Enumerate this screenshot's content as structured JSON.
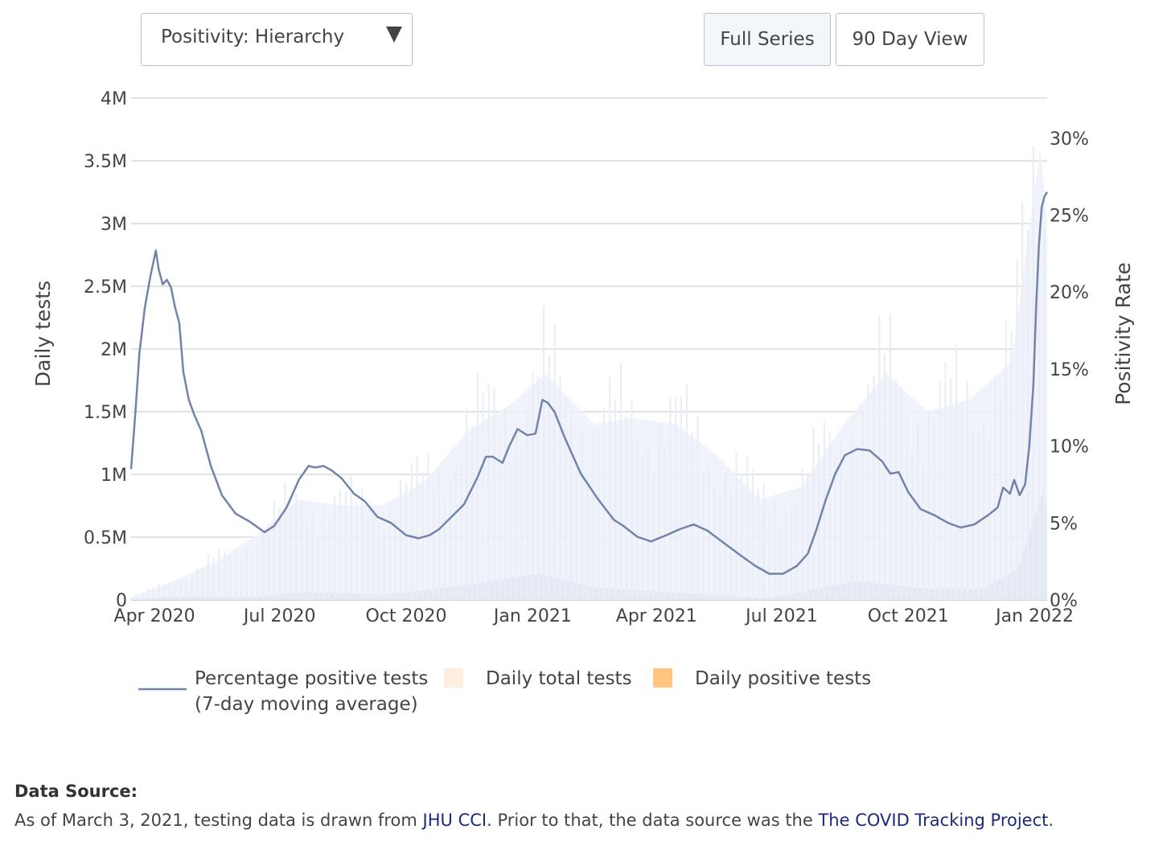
{
  "controls": {
    "dropdown_value": "Positivity: Hierarchy",
    "buttons": [
      {
        "label": "Full Series",
        "active": true
      },
      {
        "label": "90 Day View",
        "active": false
      }
    ]
  },
  "chart_data": {
    "type": "line",
    "ylabel": "Daily tests",
    "y2label": "Positivity Rate",
    "x_tick_labels": [
      "Apr 2020",
      "Jul 2020",
      "Oct 2020",
      "Jan 2021",
      "Apr 2021",
      "Jul 2021",
      "Oct 2021",
      "Jan 2022"
    ],
    "x_range": [
      "2020-03-15",
      "2022-01-10"
    ],
    "y_ticks": [
      {
        "value": 0,
        "label": "0"
      },
      {
        "value": 500000,
        "label": "0.5M"
      },
      {
        "value": 1000000,
        "label": "1M"
      },
      {
        "value": 1500000,
        "label": "1.5M"
      },
      {
        "value": 2000000,
        "label": "2M"
      },
      {
        "value": 2500000,
        "label": "2.5M"
      },
      {
        "value": 3000000,
        "label": "3M"
      },
      {
        "value": 3500000,
        "label": "3.5M"
      },
      {
        "value": 4000000,
        "label": "4M"
      }
    ],
    "y_range": [
      0,
      4000000
    ],
    "y2_ticks": [
      {
        "value": 0,
        "label": "0%"
      },
      {
        "value": 5,
        "label": "5%"
      },
      {
        "value": 10,
        "label": "10%"
      },
      {
        "value": 15,
        "label": "15%"
      },
      {
        "value": 20,
        "label": "20%"
      },
      {
        "value": 25,
        "label": "25%"
      },
      {
        "value": 30,
        "label": "30%"
      }
    ],
    "y2_range": [
      0,
      32.6
    ],
    "grid": true,
    "legend_position": "bottom",
    "colors": {
      "line": "#7384aa",
      "total": "#fdeee0",
      "positive": "#ffc581",
      "bars": "#e8edf6"
    },
    "series": [
      {
        "name": "Percentage positive tests (7-day moving average)",
        "legend_lines": [
          "Percentage positive tests",
          "(7-day moving average)"
        ],
        "axis": "right",
        "kind": "line",
        "unit": "%",
        "points": [
          [
            "2020-03-15",
            8.5
          ],
          [
            "2020-03-18",
            12
          ],
          [
            "2020-03-21",
            16
          ],
          [
            "2020-03-25",
            19
          ],
          [
            "2020-03-29",
            21
          ],
          [
            "2020-04-02",
            22.7
          ],
          [
            "2020-04-04",
            21.5
          ],
          [
            "2020-04-07",
            20.5
          ],
          [
            "2020-04-10",
            20.8
          ],
          [
            "2020-04-13",
            20.3
          ],
          [
            "2020-04-16",
            19
          ],
          [
            "2020-04-19",
            18
          ],
          [
            "2020-04-22",
            14.8
          ],
          [
            "2020-04-26",
            13
          ],
          [
            "2020-04-30",
            12
          ],
          [
            "2020-05-05",
            11
          ],
          [
            "2020-05-12",
            8.7
          ],
          [
            "2020-05-20",
            6.8
          ],
          [
            "2020-05-30",
            5.6
          ],
          [
            "2020-06-09",
            5.1
          ],
          [
            "2020-06-20",
            4.4
          ],
          [
            "2020-06-27",
            4.8
          ],
          [
            "2020-07-06",
            6
          ],
          [
            "2020-07-15",
            7.8
          ],
          [
            "2020-07-22",
            8.7
          ],
          [
            "2020-07-27",
            8.6
          ],
          [
            "2020-08-02",
            8.7
          ],
          [
            "2020-08-08",
            8.4
          ],
          [
            "2020-08-15",
            7.9
          ],
          [
            "2020-08-24",
            6.9
          ],
          [
            "2020-09-01",
            6.4
          ],
          [
            "2020-09-10",
            5.4
          ],
          [
            "2020-09-20",
            5.0
          ],
          [
            "2020-10-01",
            4.2
          ],
          [
            "2020-10-10",
            4.0
          ],
          [
            "2020-10-18",
            4.2
          ],
          [
            "2020-10-25",
            4.6
          ],
          [
            "2020-11-03",
            5.4
          ],
          [
            "2020-11-12",
            6.2
          ],
          [
            "2020-11-22",
            8.0
          ],
          [
            "2020-11-28",
            9.3
          ],
          [
            "2020-12-03",
            9.3
          ],
          [
            "2020-12-10",
            8.9
          ],
          [
            "2020-12-15",
            10
          ],
          [
            "2020-12-21",
            11.1
          ],
          [
            "2020-12-28",
            10.7
          ],
          [
            "2021-01-03",
            10.8
          ],
          [
            "2021-01-08",
            13
          ],
          [
            "2021-01-12",
            12.8
          ],
          [
            "2021-01-17",
            12.2
          ],
          [
            "2021-01-24",
            10.6
          ],
          [
            "2021-02-05",
            8.2
          ],
          [
            "2021-02-17",
            6.6
          ],
          [
            "2021-03-01",
            5.2
          ],
          [
            "2021-03-08",
            4.8
          ],
          [
            "2021-03-18",
            4.1
          ],
          [
            "2021-03-28",
            3.8
          ],
          [
            "2021-04-08",
            4.2
          ],
          [
            "2021-04-18",
            4.6
          ],
          [
            "2021-04-28",
            4.9
          ],
          [
            "2021-05-08",
            4.5
          ],
          [
            "2021-05-20",
            3.7
          ],
          [
            "2021-06-01",
            2.9
          ],
          [
            "2021-06-12",
            2.2
          ],
          [
            "2021-06-22",
            1.7
          ],
          [
            "2021-07-02",
            1.7
          ],
          [
            "2021-07-12",
            2.2
          ],
          [
            "2021-07-20",
            3.0
          ],
          [
            "2021-07-26",
            4.5
          ],
          [
            "2021-08-02",
            6.5
          ],
          [
            "2021-08-09",
            8.2
          ],
          [
            "2021-08-16",
            9.4
          ],
          [
            "2021-08-25",
            9.8
          ],
          [
            "2021-09-03",
            9.7
          ],
          [
            "2021-09-12",
            9.0
          ],
          [
            "2021-09-18",
            8.2
          ],
          [
            "2021-09-24",
            8.3
          ],
          [
            "2021-10-01",
            7.0
          ],
          [
            "2021-10-10",
            5.9
          ],
          [
            "2021-10-20",
            5.5
          ],
          [
            "2021-10-30",
            5.0
          ],
          [
            "2021-11-08",
            4.7
          ],
          [
            "2021-11-18",
            4.9
          ],
          [
            "2021-11-28",
            5.5
          ],
          [
            "2021-12-05",
            6.0
          ],
          [
            "2021-12-09",
            7.3
          ],
          [
            "2021-12-14",
            6.9
          ],
          [
            "2021-12-17",
            7.8
          ],
          [
            "2021-12-21",
            6.8
          ],
          [
            "2021-12-25",
            7.5
          ],
          [
            "2021-12-28",
            10
          ],
          [
            "2021-12-31",
            14
          ],
          [
            "2022-01-02",
            19
          ],
          [
            "2022-01-04",
            23
          ],
          [
            "2022-01-06",
            25.5
          ],
          [
            "2022-01-08",
            26.2
          ],
          [
            "2022-01-10",
            26.5
          ]
        ]
      },
      {
        "name": "Daily total tests",
        "axis": "left",
        "kind": "area",
        "points": [
          [
            "2020-03-15",
            20000
          ],
          [
            "2020-04-15",
            150000
          ],
          [
            "2020-05-15",
            300000
          ],
          [
            "2020-06-15",
            520000
          ],
          [
            "2020-07-15",
            800000
          ],
          [
            "2020-08-15",
            750000
          ],
          [
            "2020-09-15",
            760000
          ],
          [
            "2020-10-15",
            950000
          ],
          [
            "2020-11-15",
            1350000
          ],
          [
            "2020-12-15",
            1550000
          ],
          [
            "2021-01-10",
            1800000
          ],
          [
            "2021-02-15",
            1400000
          ],
          [
            "2021-03-15",
            1450000
          ],
          [
            "2021-04-15",
            1400000
          ],
          [
            "2021-05-15",
            1150000
          ],
          [
            "2021-06-15",
            800000
          ],
          [
            "2021-07-15",
            900000
          ],
          [
            "2021-08-15",
            1400000
          ],
          [
            "2021-09-15",
            1800000
          ],
          [
            "2021-10-15",
            1500000
          ],
          [
            "2021-11-15",
            1600000
          ],
          [
            "2021-12-15",
            1900000
          ],
          [
            "2022-01-05",
            3600000
          ],
          [
            "2022-01-10",
            3000000
          ]
        ]
      },
      {
        "name": "Daily positive tests",
        "axis": "left",
        "kind": "area",
        "points": [
          [
            "2020-03-15",
            2000
          ],
          [
            "2020-04-15",
            30000
          ],
          [
            "2020-06-15",
            25000
          ],
          [
            "2020-07-20",
            65000
          ],
          [
            "2020-09-15",
            40000
          ],
          [
            "2020-11-15",
            120000
          ],
          [
            "2021-01-05",
            210000
          ],
          [
            "2021-02-15",
            100000
          ],
          [
            "2021-04-15",
            60000
          ],
          [
            "2021-06-20",
            12000
          ],
          [
            "2021-08-25",
            150000
          ],
          [
            "2021-10-15",
            90000
          ],
          [
            "2021-11-25",
            90000
          ],
          [
            "2021-12-20",
            250000
          ],
          [
            "2022-01-08",
            900000
          ],
          [
            "2022-01-10",
            700000
          ]
        ]
      }
    ]
  },
  "source": {
    "title": "Data Source:",
    "text_before": "As of March 3, 2021, testing data is drawn from ",
    "link1": "JHU CCI",
    "text_middle": ". Prior to that, the data source was the ",
    "link2": "The COVID Tracking Project",
    "text_after": "."
  }
}
